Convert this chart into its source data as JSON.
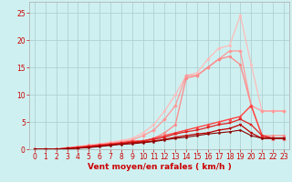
{
  "background_color": "#cff0f0",
  "grid_color": "#aacccc",
  "xlabel": "Vent moyen/en rafales ( km/h )",
  "xlabel_color": "#cc0000",
  "xlabel_fontsize": 6.5,
  "tick_color": "#cc0000",
  "tick_fontsize": 5.5,
  "xlim": [
    -0.5,
    23.5
  ],
  "ylim": [
    0,
    27
  ],
  "yticks": [
    0,
    5,
    10,
    15,
    20,
    25
  ],
  "xticks": [
    0,
    1,
    2,
    3,
    4,
    5,
    6,
    7,
    8,
    9,
    10,
    11,
    12,
    13,
    14,
    15,
    16,
    17,
    18,
    19,
    20,
    21,
    22,
    23
  ],
  "series": [
    {
      "color": "#ffbbbb",
      "x": [
        0,
        1,
        2,
        3,
        4,
        5,
        6,
        7,
        8,
        9,
        10,
        11,
        12,
        13,
        14,
        15,
        16,
        17,
        18,
        19,
        20,
        21,
        22,
        23
      ],
      "y": [
        0,
        0,
        0,
        0.3,
        0.5,
        0.8,
        1.0,
        1.3,
        1.6,
        2.0,
        3.0,
        4.5,
        7.0,
        10.0,
        13.5,
        14.0,
        16.5,
        18.5,
        19.0,
        24.5,
        15.5,
        7.0,
        7.0,
        7.0
      ],
      "marker": "o",
      "markersize": 2.0,
      "linewidth": 0.9
    },
    {
      "color": "#ff9999",
      "x": [
        0,
        1,
        2,
        3,
        4,
        5,
        6,
        7,
        8,
        9,
        10,
        11,
        12,
        13,
        14,
        15,
        16,
        17,
        18,
        19,
        20,
        21,
        22,
        23
      ],
      "y": [
        0,
        0,
        0,
        0.2,
        0.4,
        0.6,
        0.9,
        1.1,
        1.4,
        1.7,
        2.5,
        3.5,
        5.5,
        8.0,
        13.5,
        13.5,
        15.0,
        16.5,
        18.0,
        18.0,
        8.0,
        7.0,
        7.0,
        7.0
      ],
      "marker": "D",
      "markersize": 2.0,
      "linewidth": 0.9
    },
    {
      "color": "#ff8888",
      "x": [
        0,
        1,
        2,
        3,
        4,
        5,
        6,
        7,
        8,
        9,
        10,
        11,
        12,
        13,
        14,
        15,
        16,
        17,
        18,
        19,
        20,
        21,
        22,
        23
      ],
      "y": [
        0,
        0,
        0,
        0.2,
        0.4,
        0.6,
        0.8,
        1.0,
        1.2,
        1.4,
        1.5,
        2.0,
        3.0,
        4.5,
        13.0,
        13.5,
        15.0,
        16.5,
        17.0,
        15.5,
        8.0,
        2.5,
        2.5,
        2.5
      ],
      "marker": "o",
      "markersize": 2.0,
      "linewidth": 0.9
    },
    {
      "color": "#ff4444",
      "x": [
        0,
        1,
        2,
        3,
        4,
        5,
        6,
        7,
        8,
        9,
        10,
        11,
        12,
        13,
        14,
        15,
        16,
        17,
        18,
        19,
        20,
        21,
        22,
        23
      ],
      "y": [
        0,
        0,
        0,
        0.2,
        0.4,
        0.6,
        0.8,
        1.0,
        1.2,
        1.5,
        1.5,
        2.0,
        2.5,
        3.0,
        3.5,
        4.0,
        4.5,
        5.0,
        5.5,
        6.0,
        8.0,
        2.5,
        2.0,
        2.0
      ],
      "marker": "^",
      "markersize": 2.5,
      "linewidth": 1.0
    },
    {
      "color": "#dd2222",
      "x": [
        0,
        1,
        2,
        3,
        4,
        5,
        6,
        7,
        8,
        9,
        10,
        11,
        12,
        13,
        14,
        15,
        16,
        17,
        18,
        19,
        20,
        21,
        22,
        23
      ],
      "y": [
        0,
        0,
        0,
        0.2,
        0.3,
        0.5,
        0.7,
        0.9,
        1.1,
        1.3,
        1.5,
        1.8,
        2.2,
        2.8,
        3.2,
        3.5,
        4.0,
        4.5,
        4.8,
        5.5,
        4.5,
        2.5,
        2.0,
        2.0
      ],
      "marker": "s",
      "markersize": 2.0,
      "linewidth": 0.9
    },
    {
      "color": "#bb0000",
      "x": [
        0,
        1,
        2,
        3,
        4,
        5,
        6,
        7,
        8,
        9,
        10,
        11,
        12,
        13,
        14,
        15,
        16,
        17,
        18,
        19,
        20,
        21,
        22,
        23
      ],
      "y": [
        0,
        0,
        0,
        0.1,
        0.2,
        0.4,
        0.6,
        0.8,
        1.0,
        1.2,
        1.3,
        1.5,
        1.8,
        2.2,
        2.5,
        2.8,
        3.0,
        3.5,
        3.8,
        4.5,
        3.0,
        2.0,
        2.0,
        2.0
      ],
      "marker": "v",
      "markersize": 2.0,
      "linewidth": 0.9
    },
    {
      "color": "#880000",
      "x": [
        0,
        1,
        2,
        3,
        4,
        5,
        6,
        7,
        8,
        9,
        10,
        11,
        12,
        13,
        14,
        15,
        16,
        17,
        18,
        19,
        20,
        21,
        22,
        23
      ],
      "y": [
        0,
        0,
        0,
        0.1,
        0.2,
        0.3,
        0.5,
        0.7,
        0.9,
        1.0,
        1.2,
        1.4,
        1.7,
        2.0,
        2.2,
        2.5,
        2.8,
        3.0,
        3.2,
        3.5,
        2.5,
        2.0,
        2.0,
        2.0
      ],
      "marker": "o",
      "markersize": 1.5,
      "linewidth": 0.8
    }
  ]
}
